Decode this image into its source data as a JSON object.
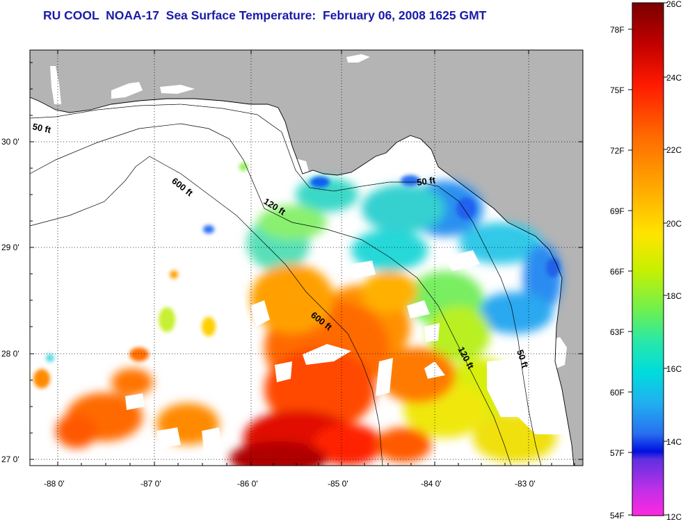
{
  "title": "RU COOL  NOAA-17  Sea Surface Temperature:  February 06, 2008 1625 GMT",
  "map": {
    "lat_labels": [
      "30 0'",
      "29 0'",
      "28 0'",
      "27 0'"
    ],
    "lon_labels": [
      "-88 0'",
      "-87 0'",
      "-86 0'",
      "-85 0'",
      "-84 0'",
      "-83 0'"
    ],
    "contour_labels": [
      {
        "id": "contour-50ft-west",
        "text": "50 ft"
      },
      {
        "id": "contour-600ft-north",
        "text": "600 ft"
      },
      {
        "id": "contour-120ft-north",
        "text": "120 ft"
      },
      {
        "id": "contour-50ft-bigbend",
        "text": "50 ft"
      },
      {
        "id": "contour-600ft-south",
        "text": "600 ft"
      },
      {
        "id": "contour-120ft-south",
        "text": "120 ft"
      },
      {
        "id": "contour-50ft-south",
        "text": "50 ft"
      }
    ],
    "colors": {
      "land": "#b4b4b4",
      "no_data": "#ffffff"
    }
  },
  "colorbar": {
    "celsius_labels": [
      "26C",
      "24C",
      "22C",
      "20C",
      "18C",
      "16C",
      "14C",
      "12C"
    ],
    "fahrenheit_labels": [
      "78F",
      "75F",
      "72F",
      "69F",
      "66F",
      "63F",
      "60F",
      "57F",
      "54F"
    ],
    "colors": [
      "#7a0000",
      "#c80000",
      "#ff1a00",
      "#ff6a00",
      "#ffa800",
      "#ffe000",
      "#c8f000",
      "#6ef050",
      "#28e8a8",
      "#00dcdc",
      "#20a0f0",
      "#2860f0",
      "#0010e0",
      "#7a30e8",
      "#ff28e0"
    ]
  }
}
